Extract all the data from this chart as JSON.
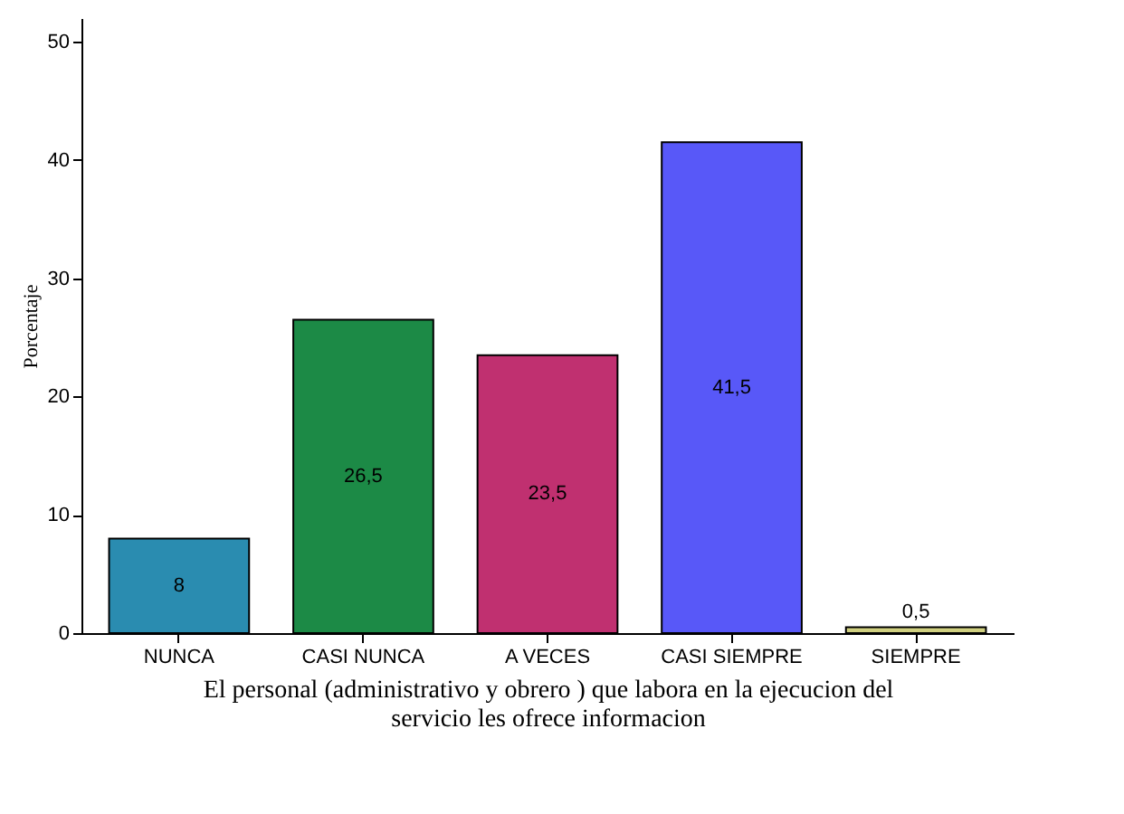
{
  "chart_data": {
    "type": "bar",
    "categories": [
      "NUNCA",
      "CASI NUNCA",
      "A VECES",
      "CASI SIEMPRE",
      "SIEMPRE"
    ],
    "values": [
      8,
      26.5,
      23.5,
      41.5,
      0.5
    ],
    "colors": [
      "#2a8cb0",
      "#1c8a46",
      "#c03070",
      "#5858f8",
      "#d0d080"
    ],
    "value_labels": [
      "8",
      "26,5",
      "23,5",
      "41,5",
      "0,5"
    ],
    "ylim": [
      0,
      52
    ],
    "yticks": [
      0,
      10,
      20,
      30,
      40,
      50
    ],
    "ylabel": "Porcentaje",
    "xlabel": "El personal (administrativo y obrero ) que labora en la ejecucion del servicio les ofrece informacion",
    "grid": false
  }
}
